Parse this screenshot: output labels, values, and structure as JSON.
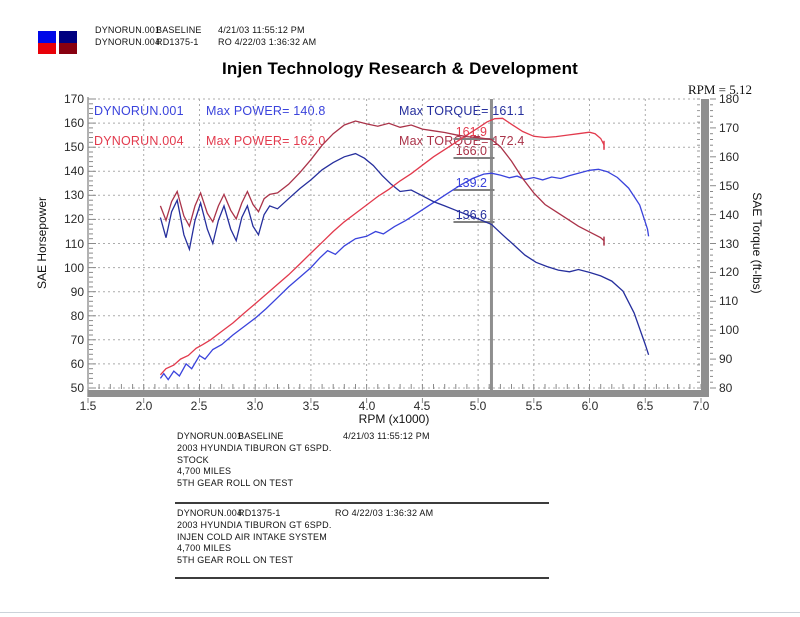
{
  "header": {
    "legend_rows": [
      {
        "run": "DYNORUN.001",
        "label": "BASELINE",
        "timestamp": "4/21/03 11:55:12 PM"
      },
      {
        "run": "DYNORUN.004",
        "label": "RD1375-1",
        "timestamp": "RO 4/22/03 1:36:32 AM"
      }
    ],
    "legend_colors": {
      "power_001": "#0008e8",
      "power_004": "#e80008",
      "torque_001": "#000080",
      "torque_004": "#880010"
    }
  },
  "chart_data": {
    "type": "line",
    "title": "Injen Technology Research & Development",
    "xlabel": "RPM (x1000)",
    "ylabel_left": "SAE Horsepower",
    "ylabel_right": "SAE Torque (ft-lbs)",
    "xlim": [
      1.5,
      7.0
    ],
    "ylim_left": [
      50,
      170
    ],
    "ylim_right": [
      80,
      180
    ],
    "grid": "dashed",
    "xticks": [
      "1.5",
      "2.0",
      "2.5",
      "3.0",
      "3.5",
      "4.0",
      "4.5",
      "5.0",
      "5.5",
      "6.0",
      "6.5",
      "7.0"
    ],
    "yticks_left": [
      "170",
      "160",
      "150",
      "140",
      "130",
      "120",
      "110",
      "100",
      "90",
      "80",
      "70",
      "60",
      "50"
    ],
    "yticks_right": [
      "180",
      "170",
      "160",
      "150",
      "140",
      "130",
      "120",
      "110",
      "100",
      "90",
      "80"
    ],
    "cursor": {
      "label": "RPM = 5.12",
      "rpm": 5.12,
      "readouts": [
        {
          "text": "161.9",
          "series": "power_004"
        },
        {
          "text": "166.0",
          "series": "torque_004"
        },
        {
          "text": "139.2",
          "series": "power_001"
        },
        {
          "text": "136.6",
          "series": "torque_001"
        }
      ]
    },
    "annotations": [
      {
        "run": "DYNORUN.001",
        "run_color": "#3a43dc",
        "power": "Max POWER= 140.8",
        "torque": "Max TORQUE= 161.1",
        "torque_color": "#262f9d"
      },
      {
        "run": "DYNORUN.004",
        "run_color": "#e23a4d",
        "power": "Max POWER= 162.0",
        "torque": "Max TORQUE= 172.4",
        "torque_color": "#aa3349"
      }
    ],
    "series": [
      {
        "id": "power_001",
        "name": "DYNORUN.001 SAE Horsepower",
        "axis": "left",
        "color": "#3a43dc",
        "end_tick": false,
        "points": [
          [
            2.15,
            54
          ],
          [
            2.18,
            56
          ],
          [
            2.22,
            53.5
          ],
          [
            2.27,
            57
          ],
          [
            2.32,
            55
          ],
          [
            2.38,
            60
          ],
          [
            2.43,
            58
          ],
          [
            2.5,
            63.5
          ],
          [
            2.55,
            62
          ],
          [
            2.62,
            66
          ],
          [
            2.7,
            68
          ],
          [
            2.8,
            72
          ],
          [
            2.9,
            75.5
          ],
          [
            3.0,
            79
          ],
          [
            3.1,
            83
          ],
          [
            3.2,
            87.5
          ],
          [
            3.3,
            92
          ],
          [
            3.4,
            96
          ],
          [
            3.5,
            100
          ],
          [
            3.58,
            104
          ],
          [
            3.65,
            107
          ],
          [
            3.72,
            105.5
          ],
          [
            3.8,
            109
          ],
          [
            3.9,
            112
          ],
          [
            4.0,
            113
          ],
          [
            4.08,
            115
          ],
          [
            4.15,
            114
          ],
          [
            4.25,
            117
          ],
          [
            4.35,
            119.5
          ],
          [
            4.45,
            122.5
          ],
          [
            4.55,
            125.5
          ],
          [
            4.65,
            128.5
          ],
          [
            4.75,
            131.5
          ],
          [
            4.85,
            134.5
          ],
          [
            4.95,
            137
          ],
          [
            5.05,
            138.8
          ],
          [
            5.12,
            139.2
          ],
          [
            5.2,
            138.4
          ],
          [
            5.28,
            137.3
          ],
          [
            5.35,
            138
          ],
          [
            5.42,
            136.6
          ],
          [
            5.5,
            137.4
          ],
          [
            5.58,
            136.4
          ],
          [
            5.66,
            137.6
          ],
          [
            5.74,
            137
          ],
          [
            5.82,
            138.2
          ],
          [
            5.9,
            139.2
          ],
          [
            6.0,
            140.4
          ],
          [
            6.08,
            140.8
          ],
          [
            6.16,
            139.8
          ],
          [
            6.25,
            137.4
          ],
          [
            6.35,
            133
          ],
          [
            6.45,
            126
          ],
          [
            6.52,
            116
          ],
          [
            6.53,
            113
          ]
        ]
      },
      {
        "id": "torque_001",
        "name": "DYNORUN.001 SAE Torque",
        "axis": "right",
        "color": "#262f9d",
        "end_tick": false,
        "points": [
          [
            2.15,
            139
          ],
          [
            2.2,
            132
          ],
          [
            2.25,
            141
          ],
          [
            2.3,
            145
          ],
          [
            2.36,
            133
          ],
          [
            2.41,
            128
          ],
          [
            2.46,
            138
          ],
          [
            2.51,
            144
          ],
          [
            2.57,
            135
          ],
          [
            2.62,
            130
          ],
          [
            2.67,
            138
          ],
          [
            2.72,
            143
          ],
          [
            2.78,
            135
          ],
          [
            2.83,
            131
          ],
          [
            2.88,
            139
          ],
          [
            2.93,
            143
          ],
          [
            2.98,
            136
          ],
          [
            3.03,
            133
          ],
          [
            3.08,
            140
          ],
          [
            3.13,
            143
          ],
          [
            3.2,
            142
          ],
          [
            3.3,
            145.5
          ],
          [
            3.4,
            149
          ],
          [
            3.5,
            152
          ],
          [
            3.6,
            155.5
          ],
          [
            3.7,
            158
          ],
          [
            3.8,
            160
          ],
          [
            3.9,
            161.1
          ],
          [
            3.98,
            159.5
          ],
          [
            4.06,
            157
          ],
          [
            4.14,
            153.5
          ],
          [
            4.22,
            150.5
          ],
          [
            4.3,
            148
          ],
          [
            4.4,
            148.5
          ],
          [
            4.5,
            146.5
          ],
          [
            4.6,
            144.5
          ],
          [
            4.7,
            143
          ],
          [
            4.8,
            141.5
          ],
          [
            4.9,
            140
          ],
          [
            5.0,
            138.5
          ],
          [
            5.12,
            136.6
          ],
          [
            5.22,
            133
          ],
          [
            5.32,
            129.5
          ],
          [
            5.42,
            126
          ],
          [
            5.52,
            123.5
          ],
          [
            5.62,
            122
          ],
          [
            5.72,
            120.8
          ],
          [
            5.82,
            120.2
          ],
          [
            5.9,
            121
          ],
          [
            6.0,
            120
          ],
          [
            6.1,
            118.8
          ],
          [
            6.2,
            117
          ],
          [
            6.3,
            113.5
          ],
          [
            6.4,
            106
          ],
          [
            6.5,
            95
          ],
          [
            6.53,
            91.5
          ]
        ]
      },
      {
        "id": "power_004",
        "name": "DYNORUN.004 SAE Horsepower",
        "axis": "left",
        "color": "#e23a4d",
        "end_tick": true,
        "points": [
          [
            2.15,
            55.5
          ],
          [
            2.2,
            58
          ],
          [
            2.27,
            59.5
          ],
          [
            2.33,
            62
          ],
          [
            2.4,
            63.5
          ],
          [
            2.47,
            66.5
          ],
          [
            2.53,
            68
          ],
          [
            2.6,
            70
          ],
          [
            2.7,
            73.5
          ],
          [
            2.8,
            77
          ],
          [
            2.9,
            81
          ],
          [
            3.0,
            85
          ],
          [
            3.1,
            89
          ],
          [
            3.2,
            93
          ],
          [
            3.3,
            97
          ],
          [
            3.4,
            101.5
          ],
          [
            3.5,
            106
          ],
          [
            3.6,
            110.5
          ],
          [
            3.7,
            115
          ],
          [
            3.8,
            119
          ],
          [
            3.9,
            122.5
          ],
          [
            4.0,
            126
          ],
          [
            4.1,
            129.5
          ],
          [
            4.2,
            132.5
          ],
          [
            4.3,
            136
          ],
          [
            4.4,
            139
          ],
          [
            4.5,
            142.5
          ],
          [
            4.6,
            146
          ],
          [
            4.7,
            149
          ],
          [
            4.8,
            152
          ],
          [
            4.9,
            155
          ],
          [
            5.0,
            158
          ],
          [
            5.08,
            160.5
          ],
          [
            5.15,
            161.8
          ],
          [
            5.22,
            162
          ],
          [
            5.3,
            159.5
          ],
          [
            5.4,
            156.5
          ],
          [
            5.5,
            154.5
          ],
          [
            5.6,
            154
          ],
          [
            5.7,
            154.4
          ],
          [
            5.8,
            155
          ],
          [
            5.9,
            155.6
          ],
          [
            6.0,
            156.2
          ],
          [
            6.05,
            155.6
          ],
          [
            6.1,
            153.6
          ],
          [
            6.13,
            151
          ]
        ]
      },
      {
        "id": "torque_004",
        "name": "DYNORUN.004 SAE Torque",
        "axis": "right",
        "color": "#aa3349",
        "end_tick": true,
        "points": [
          [
            2.15,
            143
          ],
          [
            2.2,
            138
          ],
          [
            2.25,
            144.5
          ],
          [
            2.3,
            148
          ],
          [
            2.36,
            139.5
          ],
          [
            2.41,
            136
          ],
          [
            2.46,
            143
          ],
          [
            2.51,
            147.5
          ],
          [
            2.57,
            140.5
          ],
          [
            2.62,
            137.5
          ],
          [
            2.67,
            143
          ],
          [
            2.72,
            147
          ],
          [
            2.78,
            141.5
          ],
          [
            2.83,
            138.5
          ],
          [
            2.88,
            144
          ],
          [
            2.93,
            148
          ],
          [
            2.98,
            143.5
          ],
          [
            3.03,
            141
          ],
          [
            3.08,
            145.5
          ],
          [
            3.13,
            147
          ],
          [
            3.2,
            147.5
          ],
          [
            3.3,
            150.5
          ],
          [
            3.4,
            154.5
          ],
          [
            3.5,
            159
          ],
          [
            3.6,
            164
          ],
          [
            3.7,
            168
          ],
          [
            3.8,
            171
          ],
          [
            3.9,
            172.4
          ],
          [
            4.0,
            171.4
          ],
          [
            4.1,
            170.6
          ],
          [
            4.2,
            171.6
          ],
          [
            4.3,
            170.2
          ],
          [
            4.4,
            171
          ],
          [
            4.5,
            169.6
          ],
          [
            4.6,
            169
          ],
          [
            4.7,
            168.4
          ],
          [
            4.8,
            167.6
          ],
          [
            4.9,
            167
          ],
          [
            5.0,
            166.6
          ],
          [
            5.12,
            166
          ],
          [
            5.2,
            163.5
          ],
          [
            5.3,
            158.5
          ],
          [
            5.4,
            152.5
          ],
          [
            5.5,
            147.5
          ],
          [
            5.6,
            143.5
          ],
          [
            5.7,
            141
          ],
          [
            5.8,
            138.5
          ],
          [
            5.9,
            136
          ],
          [
            6.0,
            134
          ],
          [
            6.1,
            132
          ],
          [
            6.13,
            131
          ]
        ]
      }
    ]
  },
  "footer": {
    "blocks": [
      {
        "run": "DYNORUN.001",
        "label": "BASELINE",
        "timestamp": "4/21/03 11:55:12 PM",
        "lines": [
          "2003 HYUNDIA TIBURON GT 6SPD.",
          "STOCK",
          "4,700 MILES",
          "5TH GEAR ROLL ON TEST"
        ]
      },
      {
        "run": "DYNORUN.004",
        "label": "RD1375-1",
        "timestamp": "RO   4/22/03 1:36:32 AM",
        "lines": [
          "2003 HYUNDIA TIBURON GT 6SPD.",
          "INJEN COLD AIR INTAKE SYSTEM",
          "4,700 MILES",
          "5TH GEAR ROLL ON TEST"
        ]
      }
    ]
  }
}
